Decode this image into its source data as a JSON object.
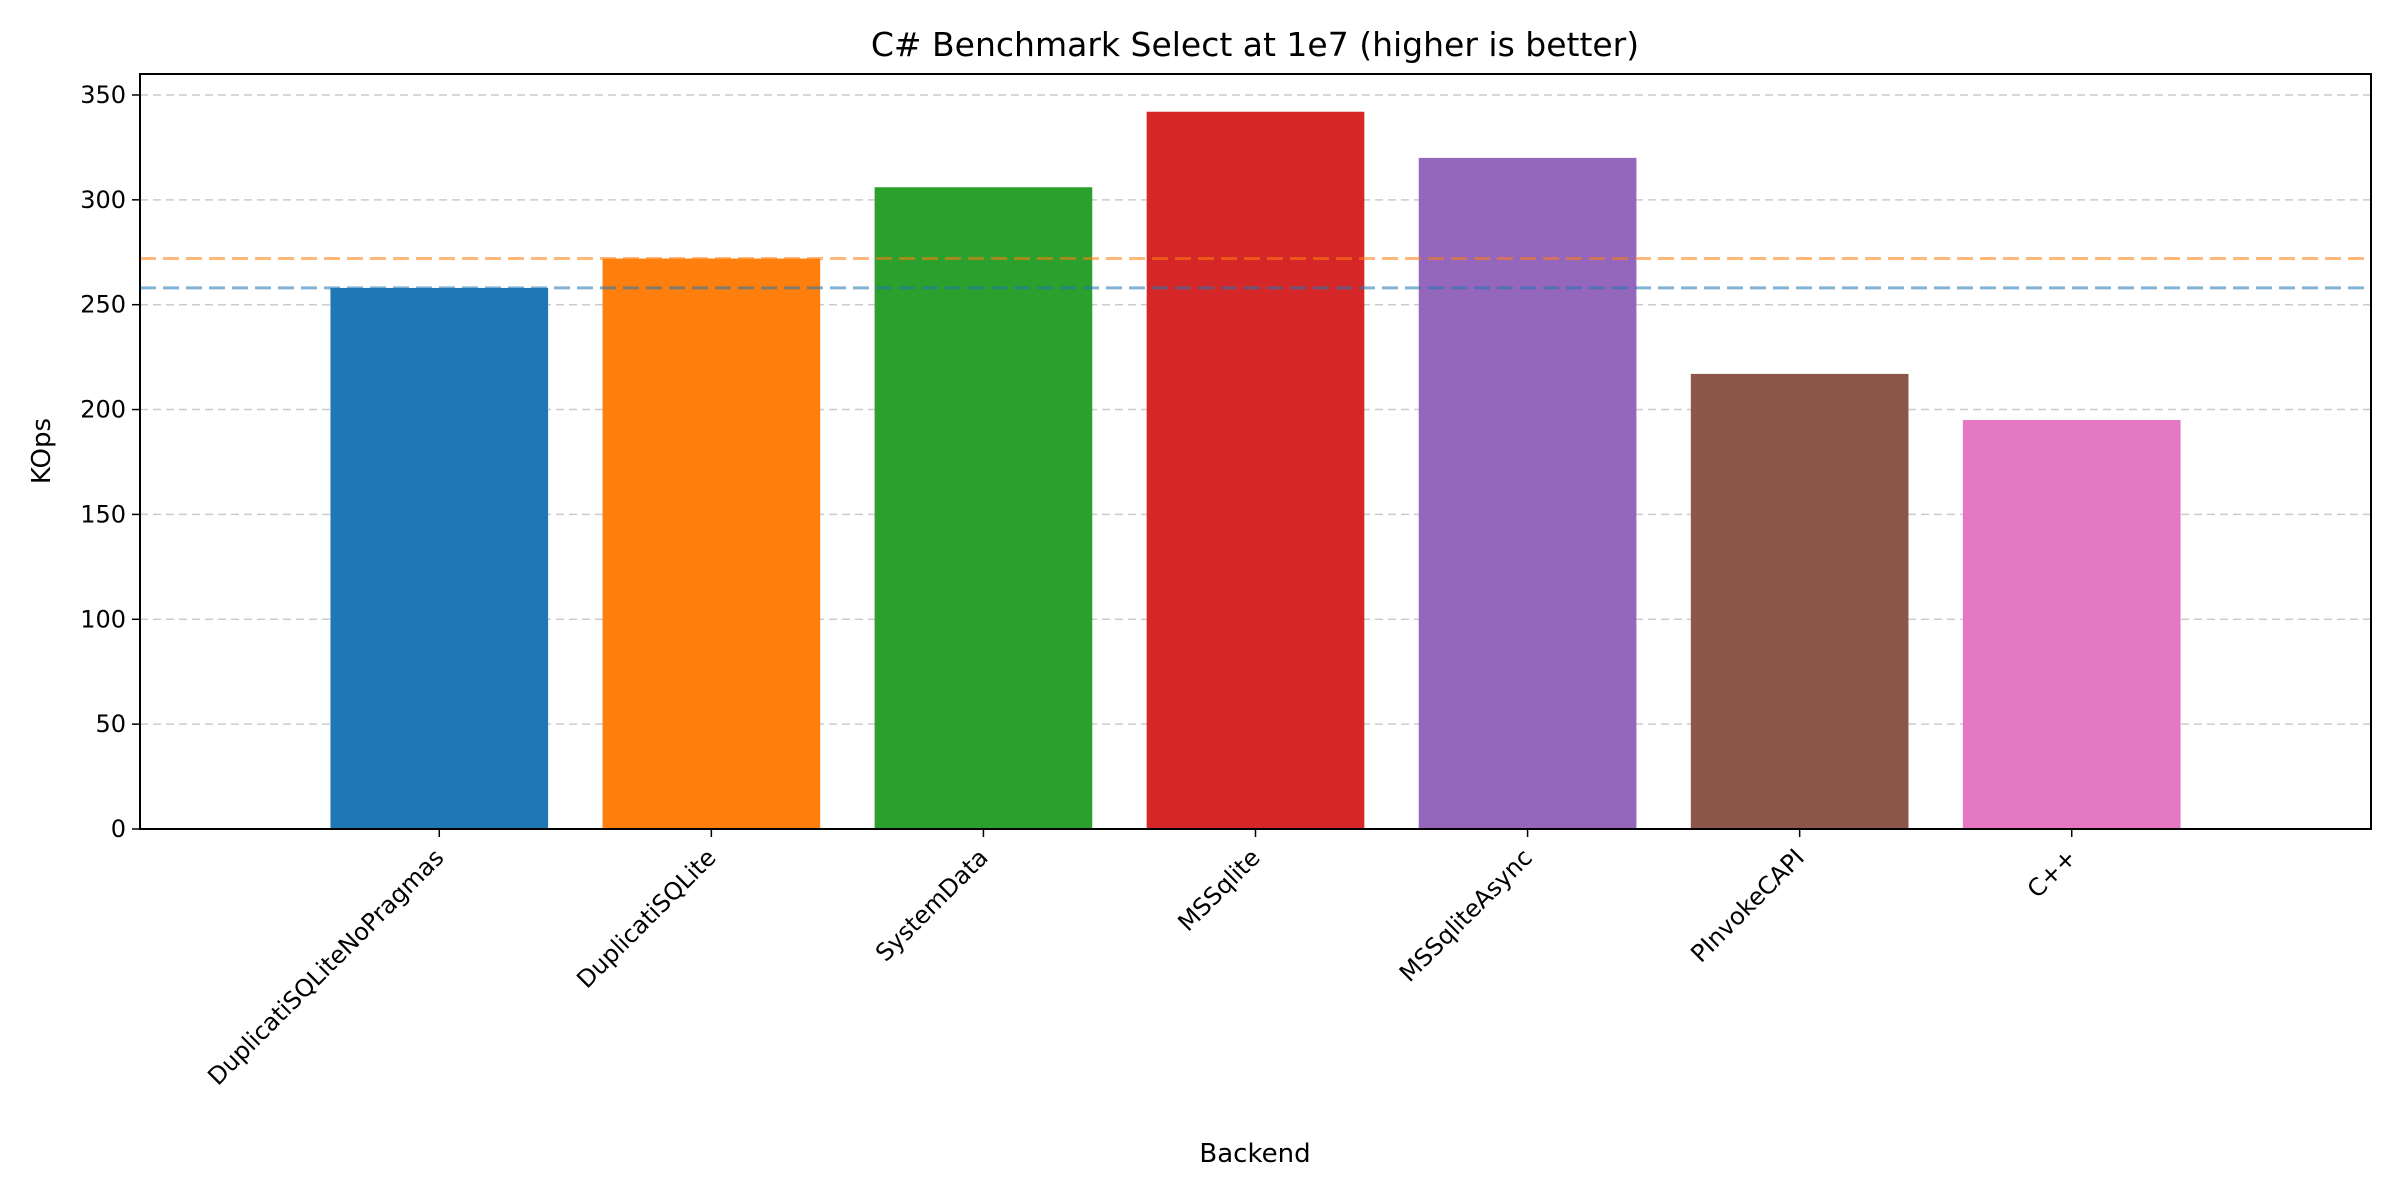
{
  "chart_data": {
    "type": "bar",
    "title": "C# Benchmark Select at 1e7 (higher is better)",
    "xlabel": "Backend",
    "ylabel": "KOps",
    "categories": [
      "DuplicatiSQLiteNoPragmas",
      "DuplicatiSQLite",
      "SystemData",
      "MSSqlite",
      "MSSqliteAsync",
      "PInvokeCAPI",
      "C++"
    ],
    "values": [
      258,
      272,
      306,
      342,
      320,
      217,
      195
    ],
    "colors": [
      "#1f77b4",
      "#ff7f0e",
      "#2ca02c",
      "#d62728",
      "#9467bd",
      "#8c564b",
      "#e377c2"
    ],
    "ylim": [
      0,
      360
    ],
    "yticks": [
      0,
      50,
      100,
      150,
      200,
      250,
      300,
      350
    ],
    "grid": "y-dashed",
    "reference_lines": [
      {
        "value": 272,
        "color": "#ff7f0e"
      },
      {
        "value": 258,
        "color": "#1f77b4"
      }
    ]
  }
}
